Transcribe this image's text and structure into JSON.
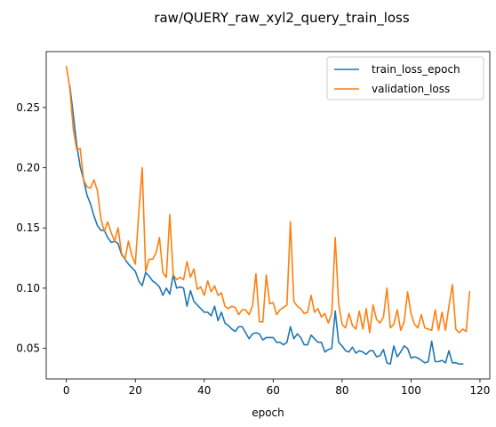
{
  "chart_data": {
    "type": "line",
    "title": "raw/QUERY_raw_xyl2_query_train_loss",
    "xlabel": "epoch",
    "ylabel": "",
    "xlim": [
      -5.85,
      122.85
    ],
    "ylim": [
      0.0246,
      0.2964
    ],
    "xticks": [
      0,
      20,
      40,
      60,
      80,
      100,
      120
    ],
    "yticks": [
      0.05,
      0.1,
      0.15,
      0.2,
      0.25
    ],
    "ytick_labels": [
      "0.05",
      "0.10",
      "0.15",
      "0.20",
      "0.25"
    ],
    "grid": false,
    "legend_position": "top-right",
    "series": [
      {
        "name": "train_loss_epoch",
        "color": "#1f77b4",
        "x_start": 1,
        "values": [
          0.268,
          0.244,
          0.219,
          0.201,
          0.19,
          0.177,
          0.17,
          0.16,
          0.152,
          0.148,
          0.148,
          0.142,
          0.138,
          0.139,
          0.137,
          0.128,
          0.124,
          0.12,
          0.117,
          0.114,
          0.106,
          0.102,
          0.113,
          0.11,
          0.106,
          0.104,
          0.101,
          0.094,
          0.1,
          0.095,
          0.111,
          0.1,
          0.101,
          0.1,
          0.085,
          0.098,
          0.089,
          0.086,
          0.083,
          0.08,
          0.08,
          0.077,
          0.085,
          0.073,
          0.08,
          0.071,
          0.069,
          0.066,
          0.064,
          0.068,
          0.068,
          0.063,
          0.058,
          0.062,
          0.063,
          0.062,
          0.057,
          0.059,
          0.059,
          0.059,
          0.055,
          0.055,
          0.053,
          0.055,
          0.068,
          0.058,
          0.062,
          0.059,
          0.053,
          0.053,
          0.061,
          0.058,
          0.055,
          0.055,
          0.047,
          0.049,
          0.05,
          0.081,
          0.055,
          0.052,
          0.048,
          0.047,
          0.051,
          0.046,
          0.048,
          0.047,
          0.045,
          0.048,
          0.048,
          0.043,
          0.044,
          0.049,
          0.038,
          0.037,
          0.052,
          0.043,
          0.047,
          0.052,
          0.05,
          0.042,
          0.043,
          0.042,
          0.04,
          0.038,
          0.039,
          0.056,
          0.039,
          0.039,
          0.04,
          0.038,
          0.048,
          0.038,
          0.038,
          0.037,
          0.037
        ]
      },
      {
        "name": "validation_loss",
        "color": "#ff7f0e",
        "x_start": 0,
        "values": [
          0.284,
          0.266,
          0.232,
          0.215,
          0.216,
          0.19,
          0.184,
          0.183,
          0.19,
          0.181,
          0.158,
          0.147,
          0.155,
          0.146,
          0.139,
          0.15,
          0.129,
          0.124,
          0.139,
          0.127,
          0.12,
          0.162,
          0.2,
          0.114,
          0.124,
          0.124,
          0.129,
          0.142,
          0.113,
          0.109,
          0.161,
          0.111,
          0.107,
          0.109,
          0.107,
          0.122,
          0.109,
          0.116,
          0.099,
          0.101,
          0.094,
          0.106,
          0.097,
          0.102,
          0.094,
          0.096,
          0.085,
          0.083,
          0.085,
          0.084,
          0.078,
          0.082,
          0.082,
          0.078,
          0.085,
          0.112,
          0.072,
          0.072,
          0.111,
          0.087,
          0.088,
          0.078,
          0.082,
          0.084,
          0.086,
          0.155,
          0.089,
          0.085,
          0.083,
          0.079,
          0.08,
          0.094,
          0.08,
          0.083,
          0.076,
          0.079,
          0.071,
          0.079,
          0.142,
          0.087,
          0.07,
          0.067,
          0.079,
          0.069,
          0.066,
          0.081,
          0.066,
          0.083,
          0.063,
          0.086,
          0.074,
          0.071,
          0.076,
          0.1,
          0.067,
          0.07,
          0.082,
          0.065,
          0.072,
          0.097,
          0.079,
          0.07,
          0.067,
          0.078,
          0.067,
          0.066,
          0.065,
          0.082,
          0.065,
          0.08,
          0.065,
          0.085,
          0.103,
          0.066,
          0.063,
          0.066,
          0.064,
          0.097
        ]
      }
    ]
  }
}
